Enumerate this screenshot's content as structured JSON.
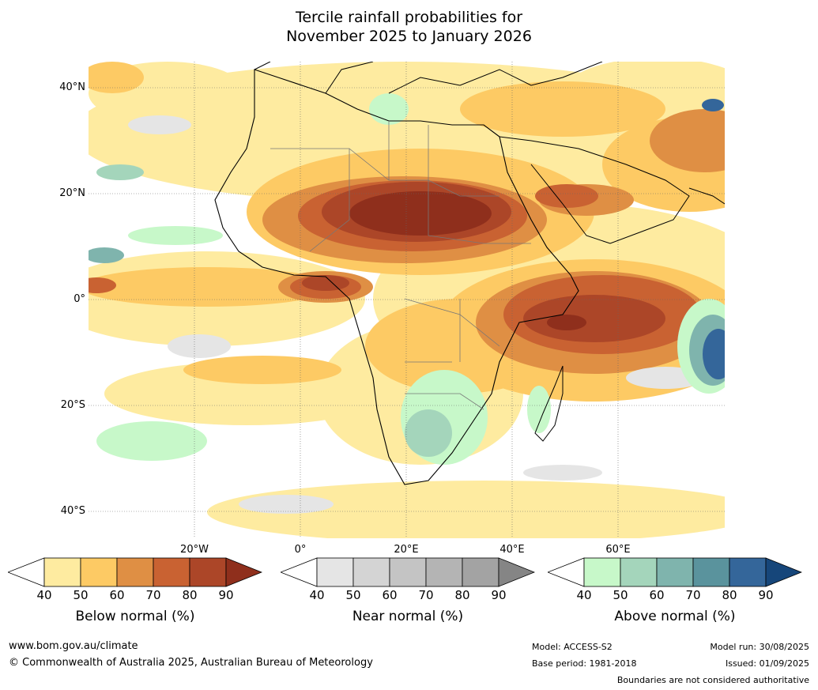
{
  "title": {
    "line1": "Tercile rainfall probabilities for",
    "line2": "November 2025 to January 2026"
  },
  "map": {
    "lat_labels": [
      "40°N",
      "20°N",
      "0°",
      "20°S",
      "40°S"
    ],
    "lon_labels": [
      "20°W",
      "0°",
      "20°E",
      "40°E",
      "60°E"
    ],
    "extent": {
      "lon": [
        -40,
        80
      ],
      "lat": [
        -45,
        45
      ]
    }
  },
  "legends": [
    {
      "name": "Below normal (%)",
      "ticks": [
        "40",
        "50",
        "60",
        "70",
        "80",
        "90"
      ],
      "colors": [
        "#ffffff",
        "#feeba0",
        "#fdca64",
        "#df8f44",
        "#c96232",
        "#ac4628",
        "#8f2f1c"
      ]
    },
    {
      "name": "Near normal (%)",
      "ticks": [
        "40",
        "50",
        "60",
        "70",
        "80",
        "90"
      ],
      "colors": [
        "#ffffff",
        "#e5e5e5",
        "#d4d4d4",
        "#c4c4c4",
        "#b4b4b4",
        "#a3a3a3",
        "#858585"
      ]
    },
    {
      "name": "Above normal (%)",
      "ticks": [
        "40",
        "50",
        "60",
        "70",
        "80",
        "90"
      ],
      "colors": [
        "#ffffff",
        "#c7f8c9",
        "#a4d5bb",
        "#7fb4ad",
        "#5a939d",
        "#34669a",
        "#16467a"
      ]
    }
  ],
  "footer": {
    "site": "www.bom.gov.au/climate",
    "copyright": "© Commonwealth of Australia 2025, Australian Bureau of Meteorology",
    "model": "Model: ACCESS-S2",
    "base_period": "Base period: 1981-2018",
    "model_run": "Model run: 30/08/2025",
    "issued": "Issued: 01/09/2025",
    "boundaries": "Boundaries are not considered authoritative"
  }
}
